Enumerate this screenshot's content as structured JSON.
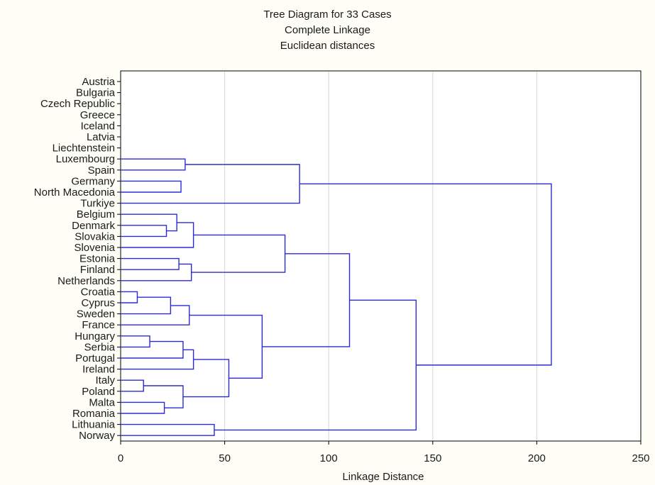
{
  "chart_data": {
    "type": "dendrogram",
    "title": "Tree Diagram for 33 Cases",
    "subtitle_1": "Complete Linkage",
    "subtitle_2": "Euclidean distances",
    "xlabel": "Linkage Distance",
    "xlim": [
      0,
      250
    ],
    "xticks": [
      0,
      50,
      100,
      150,
      200,
      250
    ],
    "grid": "vertical",
    "line_color": "#2b2bd6",
    "leaves": [
      "Austria",
      "Bulgaria",
      "Czech Republic",
      "Greece",
      "Iceland",
      "Latvia",
      "Liechtenstein",
      "Luxembourg",
      "Spain",
      "Germany",
      "North Macedonia",
      "Turkiye",
      "Belgium",
      "Denmark",
      "Slovakia",
      "Slovenia",
      "Estonia",
      "Finland",
      "Netherlands",
      "Croatia",
      "Cyprus",
      "Sweden",
      "France",
      "Hungary",
      "Serbia",
      "Portugal",
      "Ireland",
      "Italy",
      "Poland",
      "Malta",
      "Romania",
      "Lithuania",
      "Norway"
    ],
    "merges": [
      {
        "a": "Germany",
        "b": "North Macedonia",
        "height": 29
      },
      {
        "a": "Luxembourg",
        "b": "Spain",
        "height": 31,
        "pair_with": "m1",
        "note": ""
      },
      {
        "a": "Denmark",
        "b": "Slovakia",
        "height": 22
      },
      {
        "a": "Belgium",
        "b": "m3",
        "height": 27
      },
      {
        "a": "m4",
        "b": "Slovenia",
        "height": 35
      },
      {
        "a": "Estonia",
        "b": "Finland",
        "height": 28
      },
      {
        "a": "m6",
        "b": "Netherlands",
        "height": 34
      },
      {
        "a": "m5",
        "b": "m7",
        "height": 79
      },
      {
        "a": "Croatia",
        "b": "Cyprus",
        "height": 8
      },
      {
        "a": "m9",
        "b": "Sweden",
        "height": 24
      },
      {
        "a": "m10",
        "b": "France",
        "height": 33
      },
      {
        "a": "Hungary",
        "b": "Serbia",
        "height": 14
      },
      {
        "a": "m12",
        "b": "Portugal",
        "height": 30
      },
      {
        "a": "m13",
        "b": "Ireland",
        "height": 35
      },
      {
        "a": "Italy",
        "b": "Poland",
        "height": 11
      },
      {
        "a": "Malta",
        "b": "Romania",
        "height": 21
      },
      {
        "a": "m15",
        "b": "m16",
        "height": 30
      },
      {
        "a": "m14",
        "b": "m17",
        "height": 52
      },
      {
        "a": "m11",
        "b": "m18",
        "height": 68
      },
      {
        "a": "m8",
        "b": "m19",
        "height": 110
      },
      {
        "a": "Lithuania",
        "b": "Norway",
        "height": 45
      },
      {
        "a": "m20",
        "b": "m21",
        "height": 142
      },
      {
        "a": "m2",
        "b": "Turkiye",
        "height": 86
      },
      {
        "a": "m23",
        "b": "m22",
        "height": 207
      }
    ]
  }
}
